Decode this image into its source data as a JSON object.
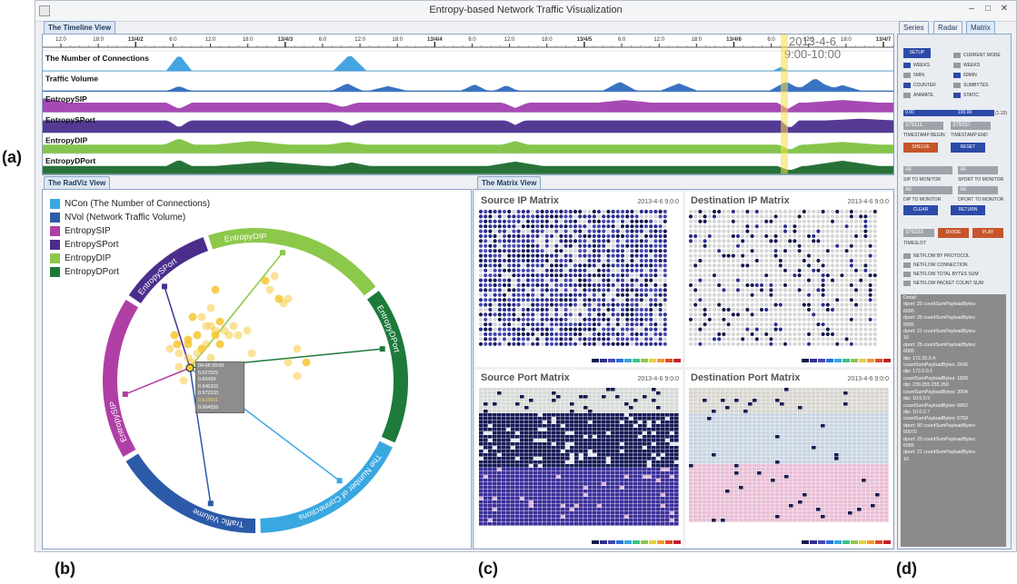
{
  "window": {
    "title": "Entropy-based Network Traffic Visualization"
  },
  "panel_letters": {
    "a": "(a)",
    "b": "(b)",
    "c": "(c)",
    "d": "(d)"
  },
  "timeline": {
    "tab": "The Timeline View",
    "highlight": {
      "date": "2013-4-6",
      "time": "9:00-10:00"
    },
    "ticks": [
      "12:0",
      "18:0",
      "13/4/2",
      "6:0",
      "12:0",
      "18:0",
      "13/4/3",
      "6:0",
      "12:0",
      "18:0",
      "13/4/4",
      "6:0",
      "12:0",
      "18:0",
      "13/4/5",
      "6:0",
      "12:0",
      "18:0",
      "13/4/6",
      "6:0",
      "12:0",
      "18:0",
      "13/4/7"
    ],
    "rows": [
      {
        "label": "The Number of Connections",
        "color": "#3a9edf",
        "fill": "#ffffff"
      },
      {
        "label": "Traffic Volume",
        "color": "#2f6bbf",
        "fill": "#ffffff"
      },
      {
        "label": "EntropySIP",
        "color": "#a23fb0",
        "fill": "#b452c0"
      },
      {
        "label": "EntropySPort",
        "color": "#4b2f8f",
        "fill": "#55369a"
      },
      {
        "label": "EntropyDIP",
        "color": "#7fc242",
        "fill": "#8ccd4b"
      },
      {
        "label": "EntropyDPort",
        "color": "#1c6a2f",
        "fill": "#21773a"
      }
    ]
  },
  "radviz": {
    "tab": "The RadViz View",
    "legend": [
      {
        "label": "NCon (The Number of Connections)",
        "color": "#3aa8e0"
      },
      {
        "label": "NVol  (Network Traffic Volume)",
        "color": "#2b5aa8"
      },
      {
        "label": "EntropySIP",
        "color": "#b03fa5"
      },
      {
        "label": "EntropySPort",
        "color": "#4b2e8c"
      },
      {
        "label": "EntropyDIP",
        "color": "#8cc84a"
      },
      {
        "label": "EntropyDPort",
        "color": "#1d7a3a"
      }
    ],
    "arc_labels": [
      "EntropyDIP",
      "EntropyDPort",
      "The Number of Connections",
      "Traffic Volume",
      "EntropySIP",
      "EntropySPort"
    ],
    "tooltip": [
      "04-06 09:00",
      "0.027922",
      "0.60439",
      "0.945202",
      "0.972333",
      "0.618601",
      "0.004559"
    ]
  },
  "matrix": {
    "tab": "The Matrix View",
    "panels": [
      {
        "title": "Source IP Matrix",
        "date": "2013-4-6 9:0:0"
      },
      {
        "title": "Destination IP Matrix",
        "date": "2013-4-6 9:0:0"
      },
      {
        "title": "Source Port Matrix",
        "date": "2013-4-6 9:0:0"
      },
      {
        "title": "Destination Port Matrix",
        "date": "2013-4-6 9:0:0"
      }
    ]
  },
  "control": {
    "tabs": [
      "Series",
      "Radar",
      "Matrix"
    ],
    "setup": "SETUP",
    "checks": [
      [
        "CURRENT MODE",
        ""
      ],
      [
        "WEEKS",
        "WEEKD"
      ],
      [
        "5MIN",
        "60MIN"
      ],
      [
        "COUNTER",
        "SUMBYTES"
      ],
      [
        "ANIMATE",
        "STATIC"
      ]
    ],
    "slider_min": "0.00",
    "slider_max": "100.00",
    "slider_suffix": "(1.10)",
    "ts_begin": "379111",
    "ts_end": "379257",
    "ts_begin_label": "TIMESTAMP BEGIN",
    "ts_end_label": "TIMESTAMP END",
    "shelve": "SHELVE",
    "reset": "RESET",
    "sip_value": "All",
    "sport_value": "All",
    "sip_label": "SIP TO MONITOR",
    "sport_label": "SPORT TO MONITOR",
    "dip_value": "All",
    "dport_value": "All",
    "dip_label": "DIP TO MONITOR",
    "dport_label": "DPORT TO MONITOR",
    "clear": "CLEAR",
    "return": "RETURN",
    "timeslot_value": "379233",
    "divide": "DIVIDE",
    "play": "PLAY",
    "timeslot_label": "TIMESLOT",
    "options": [
      "NETFLOW BY PROTOCOL",
      "NETFLOW CONNECTION",
      "NETFLOW TOTAL BYTES SUM",
      "NETFLOW PACKET COUNT SUM"
    ],
    "detail": [
      "Detail:",
      "dport: 25    countSumPayloadBytes:",
      "6095",
      "dport: 25    countSumPayloadBytes:",
      "6095",
      "dport: 21    countSumPayloadBytes:",
      "16",
      "dport: 25    countSumPayloadBytes:",
      "6095",
      "dip: 172.30.0.4",
      "countSumPayloadBytes: 2642",
      "dip: 172.0.0.1",
      "countSumPayloadBytes: 1820",
      "dip: 239.255.255.250",
      "countSumPayloadBytes: 3904",
      "dip: 10.0.0.5",
      "countSumPayloadBytes: 6862",
      "dip: 10.0.0.7",
      "countSumPayloadBytes: 6759",
      "dport: 80    countSumPayloadBytes:",
      "60070",
      "dport: 25    countSumPayloadBytes:",
      "6095",
      "dport: 21    countSumPayloadBytes:",
      "16"
    ]
  }
}
